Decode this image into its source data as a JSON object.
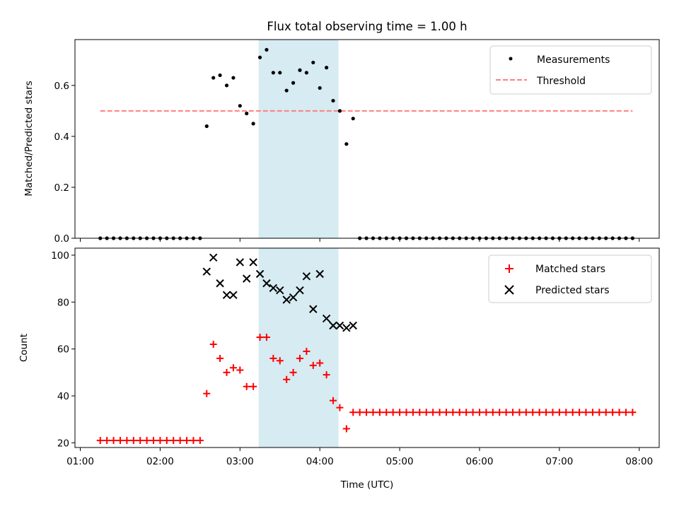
{
  "chart_data": [
    {
      "type": "scatter",
      "title": "Flux total observing time = 1.00 h",
      "xlabel": "",
      "ylabel": "Matched/Predicted stars",
      "xlim": [
        "00:56",
        "08:15"
      ],
      "ylim": [
        0,
        0.78
      ],
      "yticks": [
        0.0,
        0.2,
        0.4,
        0.6
      ],
      "ytick_labels": [
        "0.0",
        "0.2",
        "0.4",
        "0.6"
      ],
      "xticks": [
        "01:00",
        "02:00",
        "03:00",
        "04:00",
        "05:00",
        "06:00",
        "07:00",
        "08:00"
      ],
      "xtick_labels_visible": false,
      "shaded_interval": {
        "start": "03:14",
        "end": "04:14",
        "color": "#add8e6"
      },
      "legend": {
        "position": "top-right",
        "entries": [
          "Measurements",
          "Threshold"
        ]
      },
      "series": [
        {
          "name": "Measurements",
          "marker": "dot",
          "color": "#000000",
          "x": [
            "01:15",
            "01:20",
            "01:25",
            "01:30",
            "01:35",
            "01:40",
            "01:45",
            "01:50",
            "01:55",
            "02:00",
            "02:05",
            "02:10",
            "02:15",
            "02:20",
            "02:25",
            "02:30",
            "02:35",
            "02:40",
            "02:45",
            "02:50",
            "02:55",
            "03:00",
            "03:05",
            "03:10",
            "03:15",
            "03:20",
            "03:25",
            "03:30",
            "03:35",
            "03:40",
            "03:45",
            "03:50",
            "03:55",
            "04:00",
            "04:05",
            "04:10",
            "04:15",
            "04:20",
            "04:25",
            "04:30",
            "04:35",
            "04:40",
            "04:45",
            "04:50",
            "04:55",
            "05:00",
            "05:05",
            "05:10",
            "05:15",
            "05:20",
            "05:25",
            "05:30",
            "05:35",
            "05:40",
            "05:45",
            "05:50",
            "05:55",
            "06:00",
            "06:05",
            "06:10",
            "06:15",
            "06:20",
            "06:25",
            "06:30",
            "06:35",
            "06:40",
            "06:45",
            "06:50",
            "06:55",
            "07:00",
            "07:05",
            "07:10",
            "07:15",
            "07:20",
            "07:25",
            "07:30",
            "07:35",
            "07:40",
            "07:45",
            "07:50",
            "07:55"
          ],
          "y": [
            0,
            0,
            0,
            0,
            0,
            0,
            0,
            0,
            0,
            0,
            0,
            0,
            0,
            0,
            0,
            0,
            0.44,
            0.63,
            0.64,
            0.6,
            0.63,
            0.52,
            0.49,
            0.45,
            0.71,
            0.74,
            0.65,
            0.65,
            0.58,
            0.61,
            0.66,
            0.65,
            0.69,
            0.59,
            0.67,
            0.54,
            0.5,
            0.37,
            0.47,
            0,
            0,
            0,
            0,
            0,
            0,
            0,
            0,
            0,
            0,
            0,
            0,
            0,
            0,
            0,
            0,
            0,
            0,
            0,
            0,
            0,
            0,
            0,
            0,
            0,
            0,
            0,
            0,
            0,
            0,
            0,
            0,
            0,
            0,
            0,
            0,
            0,
            0,
            0,
            0,
            0,
            0
          ]
        },
        {
          "name": "Threshold",
          "style": "dashed",
          "color": "#ff7f7f",
          "x": [
            "01:15",
            "07:55"
          ],
          "y": [
            0.5,
            0.5
          ]
        }
      ]
    },
    {
      "type": "scatter",
      "title": "",
      "xlabel": "Time (UTC)",
      "ylabel": "Count",
      "xlim": [
        "00:56",
        "08:15"
      ],
      "ylim": [
        18,
        103
      ],
      "yticks": [
        20,
        40,
        60,
        80,
        100
      ],
      "ytick_labels": [
        "20",
        "40",
        "60",
        "80",
        "100"
      ],
      "xticks": [
        "01:00",
        "02:00",
        "03:00",
        "04:00",
        "05:00",
        "06:00",
        "07:00",
        "08:00"
      ],
      "xtick_labels": [
        "01:00",
        "02:00",
        "03:00",
        "04:00",
        "05:00",
        "06:00",
        "07:00",
        "08:00"
      ],
      "shaded_interval": {
        "start": "03:14",
        "end": "04:14",
        "color": "#add8e6"
      },
      "legend": {
        "position": "top-right",
        "entries": [
          "Matched stars",
          "Predicted stars"
        ]
      },
      "series": [
        {
          "name": "Matched stars",
          "marker": "plus",
          "color": "#ff0000",
          "x": [
            "01:15",
            "01:20",
            "01:25",
            "01:30",
            "01:35",
            "01:40",
            "01:45",
            "01:50",
            "01:55",
            "02:00",
            "02:05",
            "02:10",
            "02:15",
            "02:20",
            "02:25",
            "02:30",
            "02:35",
            "02:40",
            "02:45",
            "02:50",
            "02:55",
            "03:00",
            "03:05",
            "03:10",
            "03:15",
            "03:20",
            "03:25",
            "03:30",
            "03:35",
            "03:40",
            "03:45",
            "03:50",
            "03:55",
            "04:00",
            "04:05",
            "04:10",
            "04:15",
            "04:20",
            "04:25",
            "04:30",
            "04:35",
            "04:40",
            "04:45",
            "04:50",
            "04:55",
            "05:00",
            "05:05",
            "05:10",
            "05:15",
            "05:20",
            "05:25",
            "05:30",
            "05:35",
            "05:40",
            "05:45",
            "05:50",
            "05:55",
            "06:00",
            "06:05",
            "06:10",
            "06:15",
            "06:20",
            "06:25",
            "06:30",
            "06:35",
            "06:40",
            "06:45",
            "06:50",
            "06:55",
            "07:00",
            "07:05",
            "07:10",
            "07:15",
            "07:20",
            "07:25",
            "07:30",
            "07:35",
            "07:40",
            "07:45",
            "07:50",
            "07:55"
          ],
          "y": [
            21,
            21,
            21,
            21,
            21,
            21,
            21,
            21,
            21,
            21,
            21,
            21,
            21,
            21,
            21,
            21,
            41,
            62,
            56,
            50,
            52,
            51,
            44,
            44,
            65,
            65,
            56,
            55,
            47,
            50,
            56,
            59,
            53,
            54,
            49,
            38,
            35,
            26,
            33,
            33,
            33,
            33,
            33,
            33,
            33,
            33,
            33,
            33,
            33,
            33,
            33,
            33,
            33,
            33,
            33,
            33,
            33,
            33,
            33,
            33,
            33,
            33,
            33,
            33,
            33,
            33,
            33,
            33,
            33,
            33,
            33,
            33,
            33,
            33,
            33,
            33,
            33,
            33,
            33,
            33,
            33
          ]
        },
        {
          "name": "Predicted stars",
          "marker": "x",
          "color": "#000000",
          "x": [
            "02:35",
            "02:40",
            "02:45",
            "02:50",
            "02:55",
            "03:00",
            "03:05",
            "03:10",
            "03:15",
            "03:20",
            "03:25",
            "03:30",
            "03:35",
            "03:40",
            "03:45",
            "03:50",
            "03:55",
            "04:00",
            "04:05",
            "04:10",
            "04:15",
            "04:20",
            "04:25"
          ],
          "y": [
            93,
            99,
            88,
            83,
            83,
            97,
            90,
            97,
            92,
            88,
            86,
            85,
            81,
            82,
            85,
            91,
            77,
            92,
            73,
            70,
            70,
            69,
            70
          ]
        }
      ]
    }
  ]
}
